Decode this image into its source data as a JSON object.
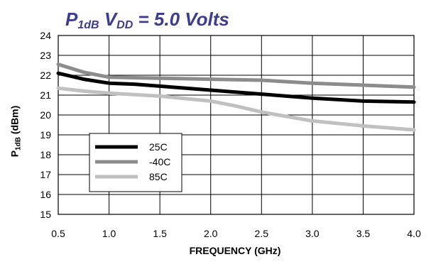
{
  "title": {
    "p": "P",
    "p_sub": "1dB",
    "v": "V",
    "v_sub": "DD",
    "rest": "= 5.0 Volts"
  },
  "axes": {
    "y_p": "P",
    "y_sub": "1dB",
    "y_unit": "(dBm)",
    "x_label": "FREQUENCY (GHz)"
  },
  "chart_data": {
    "type": "line",
    "title": "P1dB VDD = 5.0 Volts",
    "xlabel": "FREQUENCY (GHz)",
    "ylabel": "P1dB (dBm)",
    "xlim": [
      0.5,
      4.0
    ],
    "ylim": [
      15,
      24
    ],
    "xticks": [
      "0.5",
      "1.0",
      "1.5",
      "2.0",
      "2.5",
      "3.0",
      "3.5",
      "4.0"
    ],
    "yticks": [
      "15",
      "16",
      "17",
      "18",
      "19",
      "20",
      "21",
      "22",
      "23",
      "24"
    ],
    "grid": true,
    "legend_position": "lower-left",
    "series": [
      {
        "name": "25C",
        "color": "#000000",
        "x": [
          0.5,
          0.75,
          1.0,
          1.25,
          1.5,
          2.0,
          2.5,
          3.0,
          3.5,
          4.0
        ],
        "y": [
          22.1,
          21.8,
          21.6,
          21.55,
          21.45,
          21.25,
          21.05,
          20.85,
          20.7,
          20.65
        ]
      },
      {
        "name": "-40C",
        "color": "#8c8c8c",
        "x": [
          0.5,
          0.75,
          1.0,
          1.5,
          2.0,
          2.5,
          3.0,
          3.5,
          4.0
        ],
        "y": [
          22.55,
          22.15,
          21.9,
          21.85,
          21.8,
          21.75,
          21.6,
          21.5,
          21.4
        ]
      },
      {
        "name": "85C",
        "color": "#c0c0c0",
        "x": [
          0.5,
          0.75,
          1.0,
          1.5,
          2.0,
          2.25,
          2.5,
          3.0,
          3.5,
          4.0
        ],
        "y": [
          21.35,
          21.2,
          21.1,
          20.95,
          20.7,
          20.45,
          20.15,
          19.7,
          19.45,
          19.25
        ]
      }
    ]
  }
}
